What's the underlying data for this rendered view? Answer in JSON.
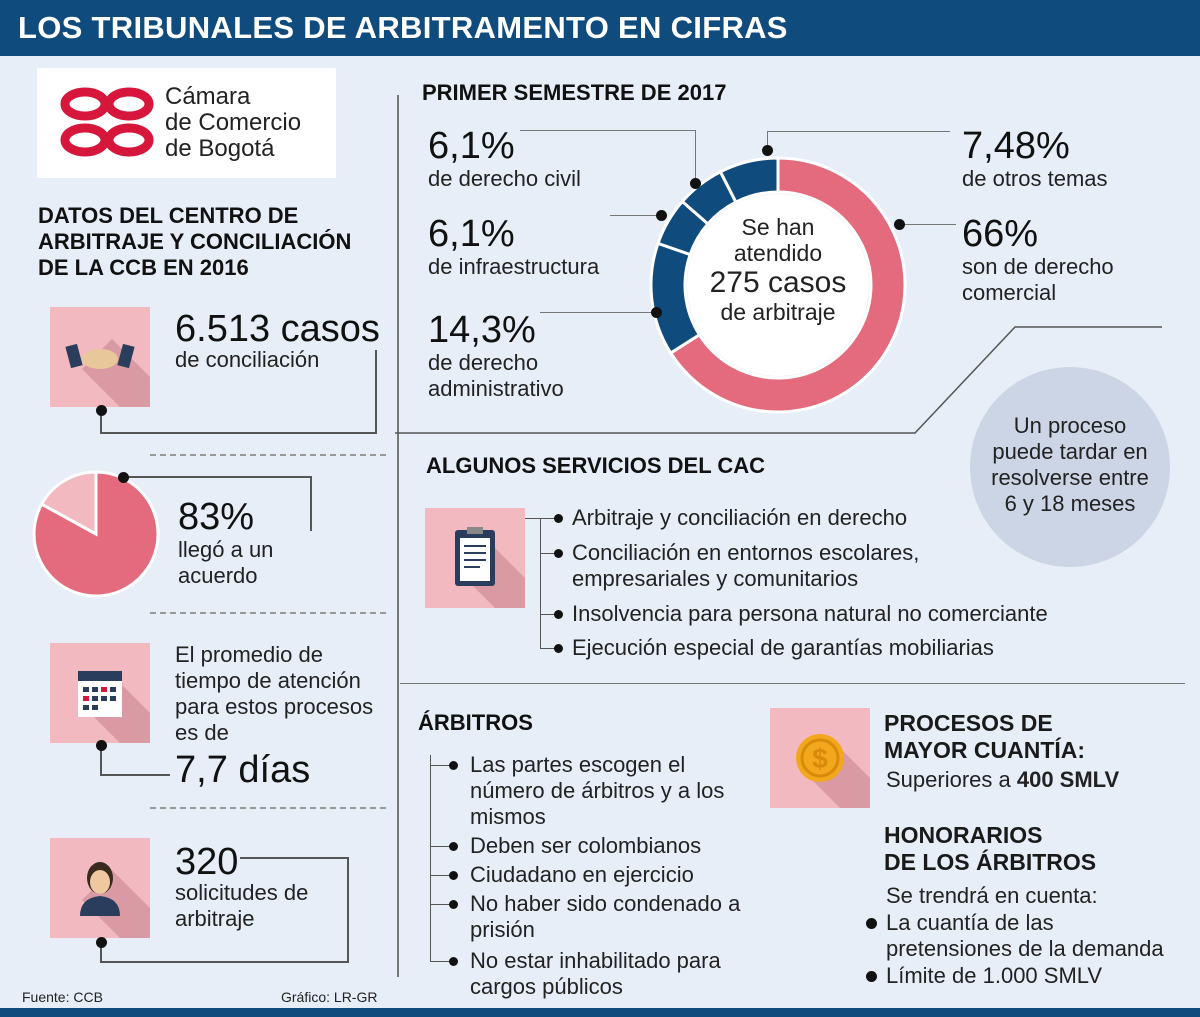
{
  "header": {
    "title": "LOS TRIBUNALES DE ARBITRAMENTO EN CIFRAS"
  },
  "logo": {
    "line1": "Cámara",
    "line2": "de Comercio",
    "line3": "de Bogotá"
  },
  "left": {
    "heading": [
      "DATOS DEL CENTRO DE",
      "ARBITRAJE Y CONCILIACIÓN",
      "DE LA CCB EN 2016"
    ],
    "stat1": {
      "value": "6.513 casos",
      "label": "de conciliación"
    },
    "stat2": {
      "value": "83%",
      "label": [
        "llegó a un",
        "acuerdo"
      ]
    },
    "stat3": {
      "label": [
        "El promedio de",
        "tiempo de atención",
        "para estos procesos",
        "es de"
      ],
      "value": "7,7 días"
    },
    "stat4": {
      "value": "320",
      "label": [
        "solicitudes de",
        "arbitraje"
      ]
    }
  },
  "semestre": {
    "title": "PRIMER SEMESTRE DE 2017",
    "center": [
      "Se han",
      "atendido",
      "275 casos",
      "de arbitraje"
    ],
    "labels": [
      {
        "pct": "6,1%",
        "text": [
          "de derecho civil"
        ]
      },
      {
        "pct": "6,1%",
        "text": [
          "de infraestructura"
        ]
      },
      {
        "pct": "14,3%",
        "text": [
          "de derecho",
          "administrativo"
        ]
      },
      {
        "pct": "7,48%",
        "text": [
          "de otros temas"
        ]
      },
      {
        "pct": "66%",
        "text": [
          "son de derecho",
          "comercial"
        ]
      }
    ]
  },
  "chart_data": [
    {
      "type": "pie",
      "title": "PRIMER SEMESTRE DE 2017",
      "donut": true,
      "categories": [
        "derecho comercial",
        "derecho administrativo",
        "infraestructura",
        "derecho civil",
        "otros temas"
      ],
      "values": [
        66,
        14.3,
        6.1,
        6.1,
        7.48
      ],
      "colors": [
        "#e46b7d",
        "#0f4c7d",
        "#0f4c7d",
        "#0f4c7d",
        "#0f4c7d"
      ]
    },
    {
      "type": "pie",
      "title": "llegó a un acuerdo",
      "categories": [
        "acuerdo",
        "sin acuerdo"
      ],
      "values": [
        83,
        17
      ],
      "colors": [
        "#e46b7d",
        "#f2bac0"
      ]
    }
  ],
  "proceso": {
    "lines": [
      "Un proceso",
      "puede tardar en",
      "resolverse entre",
      "6 y 18 meses"
    ]
  },
  "servicios": {
    "title": "ALGUNOS SERVICIOS DEL CAC",
    "items": [
      [
        "Arbitraje y conciliación en derecho"
      ],
      [
        "Conciliación en entornos escolares,",
        "empresariales y comunitarios"
      ],
      [
        "Insolvencia para persona natural no comerciante"
      ],
      [
        "Ejecución especial de garantías mobiliarias"
      ]
    ]
  },
  "arbitros": {
    "title": "ÁRBITROS",
    "items": [
      [
        "Las partes escogen el",
        "número de árbitros y a los",
        "mismos"
      ],
      [
        "Deben ser colombianos"
      ],
      [
        "Ciudadano en ejercicio"
      ],
      [
        "No haber sido condenado a",
        "prisión"
      ],
      [
        "No estar inhabilitado para",
        "cargos públicos"
      ]
    ]
  },
  "cuantia": {
    "title": [
      "PROCESOS DE",
      "MAYOR CUANTÍA:"
    ],
    "text_pre": "Superiores a ",
    "text_bold": "400 SMLV"
  },
  "honorarios": {
    "title": [
      "HONORARIOS",
      "DE LOS ÁRBITROS"
    ],
    "intro": "Se trendrá en cuenta:",
    "items": [
      [
        "La cuantía de las",
        "pretensiones de la demanda"
      ],
      [
        "Límite de 1.000 SMLV"
      ]
    ]
  },
  "footer": {
    "source": "Fuente: CCB",
    "credit": "Gráfico: LR-GR"
  }
}
